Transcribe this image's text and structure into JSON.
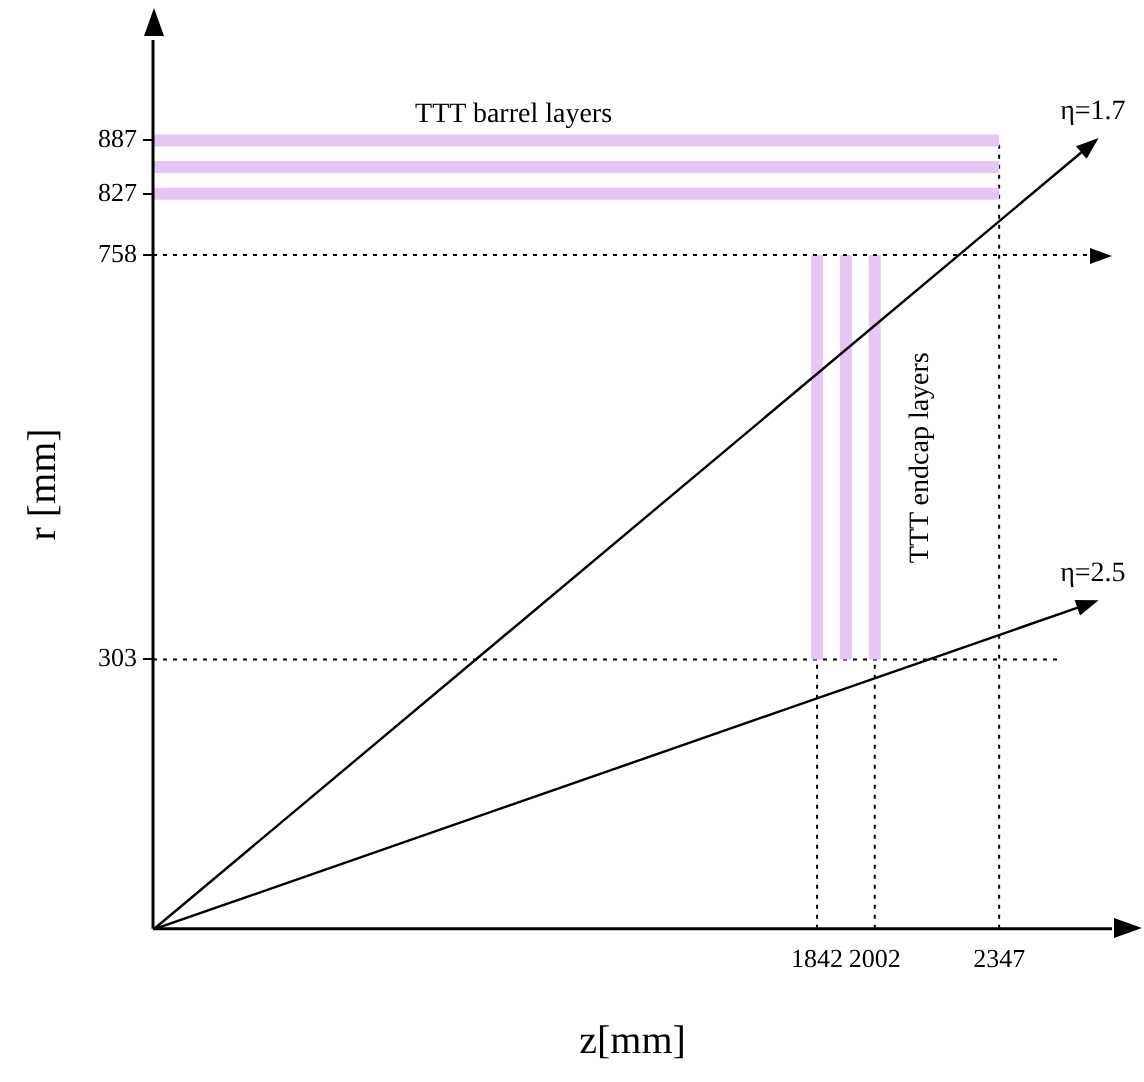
{
  "chart_data": {
    "type": "line",
    "xlabel": "z[mm]",
    "ylabel": "r [mm]",
    "xlim": [
      0,
      2660
    ],
    "ylim": [
      0,
      1000
    ],
    "xticks": [
      1842,
      2002,
      2347
    ],
    "yticks": [
      303,
      758,
      827,
      887
    ],
    "ref_lines": [
      {
        "axis": "y",
        "value": 758,
        "color": "#000000",
        "line_style": "dotted"
      }
    ],
    "grid": false,
    "legend": false,
    "marker": "none",
    "annotations": [
      "TTT barrel layers",
      "TTT endcap layers",
      "η=1.7",
      "η=2.5"
    ],
    "series": [
      {
        "color": "#e6c6f3",
        "x": [
          0,
          2347
        ],
        "values": [
          887,
          887
        ]
      },
      {
        "color": "#e6c6f3",
        "x": [
          0,
          2347
        ],
        "values": [
          857,
          857
        ]
      },
      {
        "color": "#e6c6f3",
        "x": [
          0,
          2347
        ],
        "values": [
          827,
          827
        ]
      },
      {
        "color": "#e6c6f3",
        "x": [
          1842,
          1842
        ],
        "values": [
          303,
          758
        ]
      },
      {
        "color": "#e6c6f3",
        "x": [
          1922,
          1922
        ],
        "values": [
          303,
          758
        ]
      },
      {
        "color": "#e6c6f3",
        "x": [
          2002,
          2002
        ],
        "values": [
          303,
          758
        ]
      },
      {
        "color": "#000000",
        "line_style": "dotted",
        "x": [
          0,
          2520
        ],
        "values": [
          303,
          303
        ]
      },
      {
        "color": "#000000",
        "line_style": "dotted",
        "x": [
          1842,
          1842
        ],
        "values": [
          0,
          303
        ]
      },
      {
        "color": "#000000",
        "line_style": "dotted",
        "x": [
          2002,
          2002
        ],
        "values": [
          0,
          303
        ]
      },
      {
        "color": "#000000",
        "line_style": "dotted",
        "x": [
          2347,
          2347
        ],
        "values": [
          0,
          887
        ]
      }
    ]
  }
}
